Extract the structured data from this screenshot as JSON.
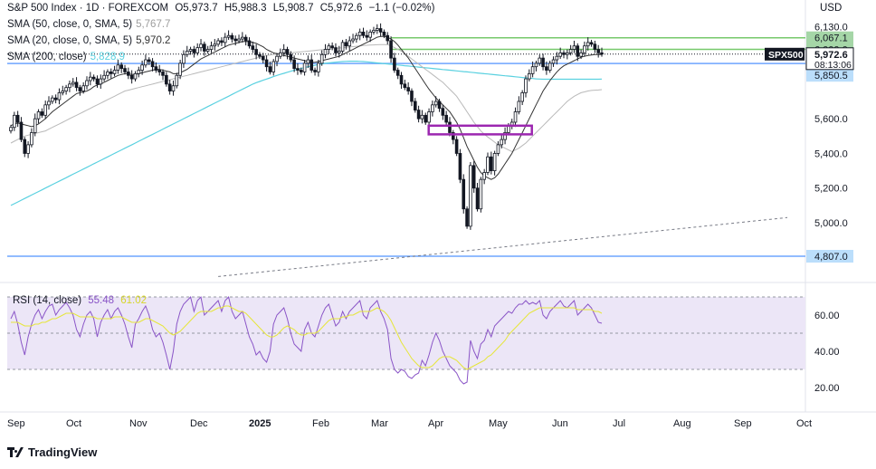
{
  "header": {
    "symbol_label": "S&P 500 Index · 1D · FOREXCOM",
    "open": "O5,973.7",
    "high": "H5,988.3",
    "low": "L5,908.7",
    "close": "C5,972.6",
    "change": "−1.1 (−0.02%)"
  },
  "currency": "USD",
  "indicators": [
    {
      "label": "SMA (50, close, 0, SMA, 5)",
      "value": "5,767.7",
      "color": "#9e9e9e"
    },
    {
      "label": "SMA (20, close, 0, SMA, 5)",
      "value": "5,970.2",
      "color": "#333333"
    },
    {
      "label": "SMA (200, close)",
      "value": "5,828.9",
      "color": "#5ad1e0"
    }
  ],
  "rsi": {
    "label": "RSI (14, close)",
    "value": "55.48",
    "ma_value": "61.02",
    "line_color": "#8a55c7",
    "ma_color": "#e6e63a"
  },
  "ticker": {
    "symbol": "SPX500",
    "price": "5,972.6",
    "countdown": "08:13:06"
  },
  "logo": "TradingView",
  "colors": {
    "up": "#131722",
    "down": "#131722",
    "support_line": "#6ea5ff",
    "resistance_line": "#77c96b",
    "box": "#9c27b0",
    "rsi_bg": "#ece6f7"
  },
  "chart_data": {
    "type": "candlestick",
    "symbol": "S&P 500 Index",
    "timeframe": "1D",
    "price_axis": {
      "min": 4760,
      "max": 6170,
      "ticks": [
        4807.0,
        5000.0,
        5200.0,
        5400.0,
        5600.0,
        5850.5,
        5918.9,
        6000.0,
        6067.1,
        6130.0
      ]
    },
    "price_labels": [
      {
        "text": "6,130.0",
        "value": 6130.0,
        "style": "plain"
      },
      {
        "text": "6,067.1",
        "value": 6067.1,
        "style": "green"
      },
      {
        "text": "6,000.0",
        "value": 6000.0,
        "style": "green"
      },
      {
        "text": "5,918.9",
        "value": 5918.9,
        "style": "blue"
      },
      {
        "text": "5,850.5",
        "value": 5850.5,
        "style": "blue"
      },
      {
        "text": "5,600.0",
        "value": 5600.0,
        "style": "plain"
      },
      {
        "text": "5,400.0",
        "value": 5400.0,
        "style": "plain"
      },
      {
        "text": "5,200.0",
        "value": 5200.0,
        "style": "plain"
      },
      {
        "text": "5,000.0",
        "value": 5000.0,
        "style": "plain"
      },
      {
        "text": "4,807.0",
        "value": 4807.0,
        "style": "blue"
      }
    ],
    "time_axis": [
      "Sep",
      "Oct",
      "Nov",
      "Dec",
      "2025",
      "Feb",
      "Mar",
      "Apr",
      "May",
      "Jun",
      "Jul",
      "Aug",
      "Sep",
      "Oct"
    ],
    "horizontal_levels": [
      {
        "value": 6067.1,
        "color": "#77c96b"
      },
      {
        "value": 6000.0,
        "color": "#77c96b"
      },
      {
        "value": 5918.9,
        "color": "#6ea5ff"
      },
      {
        "value": 4807.0,
        "color": "#6ea5ff"
      }
    ],
    "closes": [
      5550,
      5620,
      5580,
      5480,
      5400,
      5450,
      5520,
      5600,
      5640,
      5620,
      5680,
      5700,
      5720,
      5710,
      5750,
      5760,
      5780,
      5800,
      5810,
      5780,
      5760,
      5790,
      5820,
      5840,
      5830,
      5800,
      5830,
      5850,
      5870,
      5860,
      5880,
      5910,
      5890,
      5870,
      5850,
      5830,
      5860,
      5880,
      5910,
      5940,
      5930,
      5900,
      5880,
      5870,
      5850,
      5800,
      5760,
      5790,
      5850,
      5920,
      5970,
      5990,
      6000,
      5980,
      6010,
      6030,
      5990,
      6000,
      6020,
      6030,
      6050,
      6040,
      6070,
      6080,
      6060,
      6050,
      6060,
      6070,
      6050,
      6020,
      6000,
      5970,
      5960,
      5940,
      5900,
      5870,
      5930,
      5960,
      5980,
      6000,
      5970,
      5940,
      5890,
      5880,
      5870,
      5920,
      5940,
      5880,
      5870,
      5920,
      5970,
      6000,
      6020,
      6010,
      5980,
      5990,
      6040,
      6020,
      6050,
      6060,
      6080,
      6100,
      6080,
      6070,
      6100,
      6110,
      6120,
      6100,
      6080,
      6050,
      5950,
      5880,
      5850,
      5800,
      5780,
      5760,
      5700,
      5650,
      5600,
      5620,
      5580,
      5640,
      5680,
      5700,
      5660,
      5620,
      5580,
      5520,
      5480,
      5400,
      5250,
      5080,
      4980,
      5330,
      5200,
      5080,
      5250,
      5290,
      5380,
      5300,
      5400,
      5450,
      5480,
      5520,
      5560,
      5580,
      5640,
      5700,
      5750,
      5830,
      5860,
      5900,
      5920,
      5950,
      5900,
      5880,
      5920,
      5940,
      5960,
      5980,
      5970,
      5980,
      6000,
      6020,
      5960,
      5980,
      6020,
      6040,
      6030,
      6000,
      5980,
      5972.6
    ],
    "sma20": [
      5560,
      5570,
      5575,
      5570,
      5565,
      5560,
      5555,
      5560,
      5570,
      5585,
      5600,
      5620,
      5640,
      5655,
      5670,
      5685,
      5700,
      5715,
      5730,
      5745,
      5750,
      5755,
      5760,
      5770,
      5785,
      5795,
      5800,
      5810,
      5820,
      5830,
      5840,
      5850,
      5855,
      5860,
      5860,
      5855,
      5855,
      5860,
      5865,
      5870,
      5875,
      5880,
      5885,
      5885,
      5880,
      5875,
      5870,
      5860,
      5860,
      5865,
      5875,
      5885,
      5900,
      5915,
      5930,
      5945,
      5955,
      5965,
      5975,
      5985,
      5995,
      6005,
      6015,
      6025,
      6030,
      6035,
      6040,
      6045,
      6045,
      6045,
      6040,
      6035,
      6025,
      6015,
      6000,
      5990,
      5980,
      5975,
      5970,
      5965,
      5960,
      5955,
      5950,
      5945,
      5940,
      5935,
      5930,
      5925,
      5925,
      5930,
      5935,
      5940,
      5945,
      5950,
      5955,
      5960,
      5970,
      5980,
      5990,
      6000,
      6010,
      6020,
      6030,
      6040,
      6050,
      6060,
      6070,
      6075,
      6075,
      6070,
      6060,
      6045,
      6025,
      6000,
      5975,
      5950,
      5920,
      5890,
      5860,
      5830,
      5800,
      5770,
      5745,
      5720,
      5700,
      5680,
      5660,
      5640,
      5610,
      5580,
      5540,
      5490,
      5440,
      5400,
      5360,
      5320,
      5290,
      5270,
      5260,
      5250,
      5260,
      5280,
      5310,
      5340,
      5370,
      5400,
      5440,
      5480,
      5520,
      5560,
      5600,
      5640,
      5680,
      5720,
      5760,
      5790,
      5820,
      5845,
      5870,
      5890,
      5905,
      5915,
      5925,
      5935,
      5945,
      5955,
      5960,
      5965,
      5968,
      5970,
      5970,
      5970.2
    ],
    "sma50": [
      5460,
      5470,
      5480,
      5490,
      5500,
      5505,
      5510,
      5515,
      5520,
      5525,
      5530,
      5540,
      5550,
      5560,
      5570,
      5580,
      5590,
      5600,
      5610,
      5620,
      5630,
      5640,
      5650,
      5660,
      5670,
      5680,
      5690,
      5700,
      5710,
      5720,
      5730,
      5740,
      5750,
      5760,
      5765,
      5770,
      5775,
      5780,
      5785,
      5790,
      5795,
      5800,
      5805,
      5810,
      5815,
      5820,
      5825,
      5830,
      5835,
      5840,
      5845,
      5850,
      5855,
      5860,
      5865,
      5870,
      5875,
      5880,
      5885,
      5890,
      5895,
      5900,
      5905,
      5910,
      5915,
      5920,
      5925,
      5930,
      5935,
      5940,
      5945,
      5950,
      5955,
      5960,
      5965,
      5968,
      5970,
      5972,
      5974,
      5976,
      5978,
      5980,
      5982,
      5984,
      5986,
      5988,
      5990,
      5992,
      5994,
      5996,
      5998,
      6000,
      6002,
      6004,
      6006,
      6008,
      6010,
      6012,
      6014,
      6016,
      6018,
      6020,
      6022,
      6024,
      6025,
      6026,
      6027,
      6028,
      6028,
      6027,
      6020,
      6010,
      6000,
      5990,
      5975,
      5960,
      5945,
      5930,
      5915,
      5900,
      5885,
      5870,
      5855,
      5840,
      5825,
      5810,
      5790,
      5770,
      5750,
      5730,
      5700,
      5670,
      5640,
      5610,
      5580,
      5555,
      5530,
      5510,
      5495,
      5480,
      5465,
      5450,
      5440,
      5430,
      5420,
      5410,
      5420,
      5430,
      5445,
      5460,
      5480,
      5500,
      5520,
      5540,
      5560,
      5580,
      5600,
      5620,
      5640,
      5660,
      5680,
      5700,
      5715,
      5730,
      5740,
      5750,
      5755,
      5760,
      5763,
      5765,
      5766,
      5767.7
    ],
    "sma200": [
      5100,
      5110,
      5120,
      5130,
      5140,
      5150,
      5160,
      5170,
      5180,
      5190,
      5200,
      5210,
      5220,
      5230,
      5240,
      5250,
      5260,
      5270,
      5280,
      5290,
      5300,
      5310,
      5320,
      5330,
      5340,
      5350,
      5360,
      5370,
      5380,
      5390,
      5400,
      5410,
      5420,
      5430,
      5440,
      5450,
      5460,
      5470,
      5480,
      5490,
      5500,
      5510,
      5520,
      5530,
      5540,
      5550,
      5560,
      5570,
      5580,
      5590,
      5600,
      5610,
      5620,
      5630,
      5640,
      5650,
      5660,
      5670,
      5680,
      5690,
      5700,
      5710,
      5720,
      5730,
      5740,
      5750,
      5760,
      5770,
      5780,
      5790,
      5800,
      5808,
      5815,
      5822,
      5829,
      5836,
      5843,
      5850,
      5856,
      5862,
      5868,
      5874,
      5880,
      5885,
      5890,
      5895,
      5900,
      5904,
      5908,
      5912,
      5916,
      5920,
      5922,
      5924,
      5926,
      5928,
      5930,
      5931,
      5932,
      5932,
      5932,
      5931,
      5930,
      5928,
      5926,
      5924,
      5922,
      5920,
      5918,
      5916,
      5914,
      5912,
      5910,
      5908,
      5906,
      5904,
      5902,
      5900,
      5898,
      5896,
      5894,
      5892,
      5890,
      5888,
      5886,
      5884,
      5882,
      5880,
      5878,
      5876,
      5874,
      5872,
      5870,
      5868,
      5866,
      5864,
      5862,
      5860,
      5858,
      5856,
      5854,
      5852,
      5850,
      5848,
      5846,
      5844,
      5842,
      5840,
      5838,
      5836,
      5834,
      5832,
      5830,
      5829,
      5828,
      5828,
      5828,
      5828,
      5828,
      5828,
      5828,
      5828,
      5828,
      5828,
      5828,
      5828,
      5828,
      5828,
      5828,
      5828,
      5828,
      5828.9
    ],
    "rsi_axis": {
      "min": 15,
      "max": 75,
      "ticks": [
        20.0,
        40.0,
        60.0
      ]
    },
    "rsi_values": [
      58,
      62,
      55,
      45,
      38,
      48,
      55,
      60,
      63,
      58,
      62,
      65,
      66,
      60,
      63,
      65,
      67,
      64,
      60,
      52,
      48,
      55,
      60,
      62,
      58,
      48,
      56,
      60,
      63,
      58,
      62,
      64,
      60,
      55,
      48,
      42,
      55,
      58,
      62,
      65,
      60,
      52,
      48,
      50,
      45,
      38,
      30,
      40,
      55,
      62,
      66,
      68,
      70,
      62,
      68,
      70,
      60,
      62,
      64,
      66,
      68,
      62,
      68,
      70,
      62,
      58,
      60,
      62,
      55,
      48,
      44,
      38,
      40,
      36,
      34,
      40,
      55,
      60,
      62,
      64,
      58,
      50,
      44,
      42,
      40,
      52,
      56,
      50,
      48,
      54,
      60,
      64,
      66,
      60,
      54,
      56,
      62,
      58,
      62,
      64,
      66,
      68,
      60,
      58,
      64,
      66,
      68,
      62,
      58,
      52,
      36,
      30,
      28,
      30,
      29,
      26,
      25,
      27,
      28,
      35,
      32,
      38,
      45,
      50,
      46,
      40,
      36,
      32,
      30,
      28,
      24,
      22,
      23,
      46,
      40,
      36,
      44,
      46,
      52,
      48,
      54,
      56,
      58,
      60,
      62,
      61,
      64,
      66,
      66,
      68,
      66,
      67,
      66,
      68,
      60,
      58,
      62,
      64,
      66,
      68,
      65,
      64,
      66,
      68,
      60,
      62,
      64,
      66,
      64,
      60,
      56,
      55.48
    ],
    "rsi_ma": [
      56,
      56,
      56,
      55,
      54,
      54,
      54,
      55,
      55,
      56,
      56,
      57,
      58,
      58,
      59,
      60,
      61,
      61,
      61,
      60,
      59,
      59,
      59,
      59,
      59,
      58,
      58,
      58,
      58,
      58,
      59,
      59,
      59,
      58,
      57,
      56,
      56,
      56,
      57,
      58,
      58,
      57,
      56,
      55,
      54,
      52,
      50,
      49,
      50,
      51,
      53,
      55,
      57,
      59,
      61,
      62,
      62,
      62,
      62,
      63,
      64,
      64,
      65,
      65,
      64,
      63,
      62,
      62,
      61,
      59,
      57,
      55,
      53,
      51,
      49,
      48,
      48,
      49,
      51,
      53,
      54,
      53,
      52,
      50,
      49,
      49,
      50,
      50,
      50,
      51,
      53,
      55,
      57,
      58,
      58,
      58,
      59,
      59,
      60,
      60,
      61,
      62,
      62,
      62,
      62,
      63,
      64,
      63,
      62,
      60,
      57,
      53,
      49,
      45,
      42,
      39,
      36,
      34,
      32,
      31,
      31,
      31,
      32,
      34,
      36,
      37,
      37,
      37,
      36,
      35,
      33,
      31,
      30,
      31,
      32,
      33,
      34,
      35,
      37,
      38,
      40,
      42,
      44,
      46,
      49,
      51,
      53,
      55,
      57,
      59,
      61,
      62,
      63,
      64,
      64,
      64,
      64,
      64,
      64,
      64,
      64,
      64,
      64,
      64,
      63,
      63,
      63,
      63,
      63,
      62,
      62,
      61.02
    ],
    "annotation_box": {
      "x_start_index": 123,
      "x_end_index": 145,
      "top": 5560,
      "bottom": 5510
    }
  }
}
